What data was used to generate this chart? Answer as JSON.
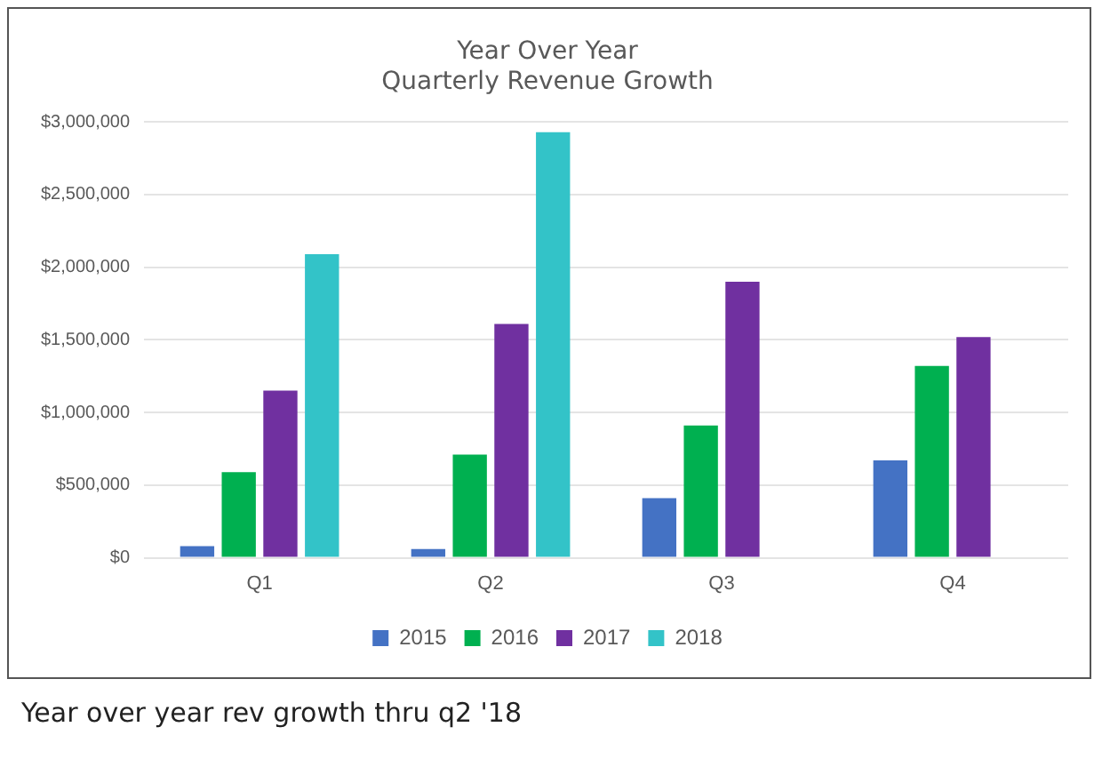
{
  "chart_data": {
    "type": "bar",
    "title": "Year Over Year",
    "subtitle": "Quarterly Revenue Growth",
    "categories": [
      "Q1",
      "Q2",
      "Q3",
      "Q4"
    ],
    "series": [
      {
        "name": "2015",
        "color": "#4472c4",
        "values": [
          80000,
          60000,
          410000,
          670000
        ]
      },
      {
        "name": "2016",
        "color": "#00b050",
        "values": [
          590000,
          710000,
          910000,
          1320000
        ]
      },
      {
        "name": "2017",
        "color": "#7030a0",
        "values": [
          1150000,
          1610000,
          1900000,
          1520000
        ]
      },
      {
        "name": "2018",
        "color": "#33c3c8",
        "values": [
          2090000,
          2930000,
          null,
          null
        ]
      }
    ],
    "ylim": [
      0,
      3000000
    ],
    "yticks": [
      {
        "value": 0,
        "label": "$0"
      },
      {
        "value": 500000,
        "label": "$500,000"
      },
      {
        "value": 1000000,
        "label": "$1,000,000"
      },
      {
        "value": 1500000,
        "label": "$1,500,000"
      },
      {
        "value": 2000000,
        "label": "$2,000,000"
      },
      {
        "value": 2500000,
        "label": "$2,500,000"
      },
      {
        "value": 3000000,
        "label": "$3,000,000"
      }
    ],
    "grid": "y",
    "legend": "bottom",
    "annotations": [
      "Year over year rev growth thru q2 '18"
    ]
  }
}
